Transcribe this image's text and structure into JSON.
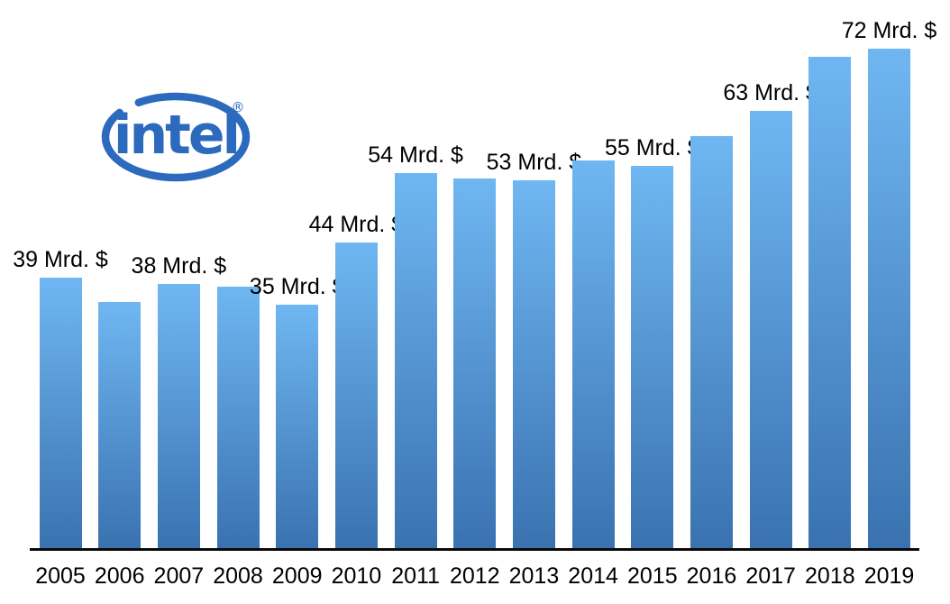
{
  "chart_data": {
    "type": "bar",
    "title": "",
    "xlabel": "",
    "ylabel": "",
    "unit": "Mrd. $",
    "categories": [
      "2005",
      "2006",
      "2007",
      "2008",
      "2009",
      "2010",
      "2011",
      "2012",
      "2013",
      "2014",
      "2015",
      "2016",
      "2017",
      "2018",
      "2019"
    ],
    "values": [
      39,
      35.4,
      38,
      37.6,
      35,
      44,
      54,
      53.3,
      53,
      55.9,
      55,
      59.4,
      63,
      70.8,
      72
    ],
    "bar_labels": [
      "39 Mrd. $",
      "",
      "38 Mrd. $",
      "",
      "35 Mrd. $",
      "44 Mrd. $",
      "54 Mrd. $",
      "",
      "53 Mrd. $",
      "",
      "55 Mrd. $",
      "",
      "63 Mrd. $",
      "",
      "72 Mrd. $"
    ],
    "ylim": [
      0,
      76
    ],
    "grid": false,
    "legend": false,
    "y_axis_shown": false,
    "x_axis_shown": true
  },
  "logo": {
    "name": "intel",
    "text": "intel",
    "registered_mark": "®"
  },
  "colors": {
    "bar_top": "#6fb7f2",
    "bar_bottom": "#3a72b0",
    "axis": "#0a0a0a",
    "text": "#000000",
    "intel_blue": "#2b6abc",
    "background": "#ffffff"
  }
}
